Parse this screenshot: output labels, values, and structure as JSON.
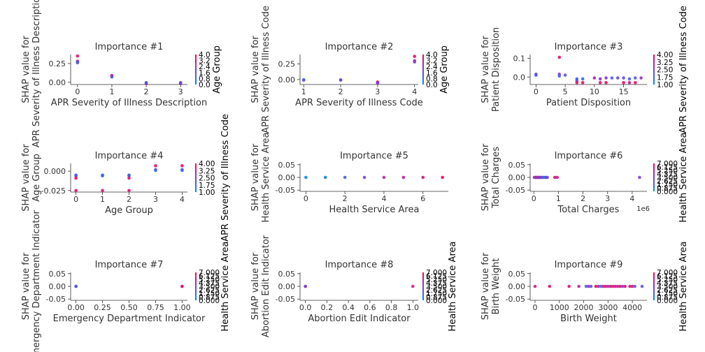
{
  "colors": {
    "low": "#008afb",
    "high": "#ff0051",
    "axis": "#333333"
  },
  "chart_data": [
    {
      "type": "scatter",
      "title": "Importance #1",
      "xlabel": "APR Severity of Illness Description",
      "ylabel": [
        "SHAP value for",
        "APR Severity of Illness Description"
      ],
      "xlim": [
        -0.2,
        3.2
      ],
      "ylim": [
        -0.03,
        0.37
      ],
      "xticks": [
        0,
        1,
        2,
        3
      ],
      "xtick_labels": [
        "0",
        "1",
        "2",
        "3"
      ],
      "yticks": [
        0,
        0.25
      ],
      "ytick_labels": [
        "0.00",
        "0.25"
      ],
      "colorbar": {
        "label": "Age Group",
        "ticks": [
          "0.0",
          "0.8",
          "1.6",
          "2.4",
          "3.2",
          "4.0"
        ]
      },
      "points": [
        {
          "x": 0,
          "y": 0.35,
          "c": 0.9
        },
        {
          "x": 0,
          "y": 0.28,
          "c": 0.7
        },
        {
          "x": 0,
          "y": 0.27,
          "c": 0.5
        },
        {
          "x": 0,
          "y": 0.26,
          "c": 0.3
        },
        {
          "x": 1,
          "y": 0.09,
          "c": 0.9
        },
        {
          "x": 1,
          "y": 0.08,
          "c": 0.6
        },
        {
          "x": 1,
          "y": 0.07,
          "c": 0.4
        },
        {
          "x": 2,
          "y": -0.01,
          "c": 0.5
        },
        {
          "x": 2,
          "y": -0.02,
          "c": 0.7
        },
        {
          "x": 2,
          "y": -0.005,
          "c": 0.3
        },
        {
          "x": 3,
          "y": -0.01,
          "c": 0.8
        },
        {
          "x": 3,
          "y": -0.02,
          "c": 0.6
        },
        {
          "x": 3,
          "y": -0.005,
          "c": 0.4
        }
      ]
    },
    {
      "type": "scatter",
      "title": "Importance #2",
      "xlabel": "APR Severity of Illness Code",
      "ylabel": [
        "SHAP value for",
        "APR Severity of Illness Code"
      ],
      "xlim": [
        0.9,
        4.1
      ],
      "ylim": [
        -0.08,
        0.4
      ],
      "xticks": [
        1,
        2,
        3,
        4
      ],
      "xtick_labels": [
        "1",
        "2",
        "3",
        "4"
      ],
      "yticks": [
        0,
        0.25
      ],
      "ytick_labels": [
        "0.00",
        "0.25"
      ],
      "colorbar": {
        "label": "Age Group",
        "ticks": [
          "0.0",
          "0.8",
          "1.6",
          "2.4",
          "3.2",
          "4.0"
        ]
      },
      "points": [
        {
          "x": 1,
          "y": -0.01,
          "c": 0.5
        },
        {
          "x": 1,
          "y": -0.005,
          "c": 0.3
        },
        {
          "x": 2,
          "y": -0.01,
          "c": 0.6
        },
        {
          "x": 2,
          "y": -0.005,
          "c": 0.4
        },
        {
          "x": 3,
          "y": -0.04,
          "c": 0.9
        },
        {
          "x": 3,
          "y": -0.05,
          "c": 0.7
        },
        {
          "x": 3,
          "y": -0.06,
          "c": 0.5
        },
        {
          "x": 4,
          "y": 0.37,
          "c": 0.9
        },
        {
          "x": 4,
          "y": 0.3,
          "c": 0.7
        },
        {
          "x": 4,
          "y": 0.28,
          "c": 0.5
        }
      ]
    },
    {
      "type": "scatter",
      "title": "Importance #3",
      "xlabel": "Patient Disposition",
      "ylabel": [
        "SHAP value for",
        "Patient Disposition"
      ],
      "xlim": [
        -1,
        19
      ],
      "ylim": [
        -0.04,
        0.12
      ],
      "xticks": [
        0,
        5,
        10,
        15
      ],
      "xtick_labels": [
        "0",
        "5",
        "10",
        "15"
      ],
      "yticks": [
        0,
        0.1
      ],
      "ytick_labels": [
        "0.0",
        "0.1"
      ],
      "colorbar": {
        "label": "APR Severity of Illness Code",
        "ticks": [
          "1.00",
          "1.75",
          "2.50",
          "3.25",
          "4.00"
        ]
      },
      "points": [
        {
          "x": 0,
          "y": 0.01,
          "c": 0.3
        },
        {
          "x": 0,
          "y": 0.015,
          "c": 0.4
        },
        {
          "x": 4,
          "y": 0.105,
          "c": 0.9
        },
        {
          "x": 4,
          "y": 0.015,
          "c": 0.5
        },
        {
          "x": 4,
          "y": 0.005,
          "c": 0.3
        },
        {
          "x": 5,
          "y": 0.01,
          "c": 0.4
        },
        {
          "x": 7,
          "y": -0.01,
          "c": 0.2
        },
        {
          "x": 7,
          "y": -0.02,
          "c": 0.5
        },
        {
          "x": 7,
          "y": -0.03,
          "c": 0.9
        },
        {
          "x": 8,
          "y": -0.01,
          "c": 0.2
        },
        {
          "x": 8,
          "y": -0.03,
          "c": 0.9
        },
        {
          "x": 10,
          "y": -0.005,
          "c": 0.7
        },
        {
          "x": 11,
          "y": -0.01,
          "c": 0.6
        },
        {
          "x": 11,
          "y": -0.03,
          "c": 0.9
        },
        {
          "x": 12,
          "y": -0.005,
          "c": 0.5
        },
        {
          "x": 12,
          "y": -0.03,
          "c": 0.9
        },
        {
          "x": 13,
          "y": -0.005,
          "c": 0.3
        },
        {
          "x": 14,
          "y": -0.005,
          "c": 0.4
        },
        {
          "x": 15,
          "y": -0.03,
          "c": 0.9
        },
        {
          "x": 15,
          "y": -0.005,
          "c": 0.4
        },
        {
          "x": 16,
          "y": -0.01,
          "c": 0.3
        },
        {
          "x": 16,
          "y": -0.03,
          "c": 0.8
        },
        {
          "x": 17,
          "y": -0.005,
          "c": 0.3
        },
        {
          "x": 17,
          "y": -0.03,
          "c": 0.9
        },
        {
          "x": 18,
          "y": -0.005,
          "c": 0.6
        }
      ]
    },
    {
      "type": "scatter",
      "title": "Importance #4",
      "xlabel": "Age Group",
      "ylabel": [
        "SHAP value for",
        "Age Group"
      ],
      "xlim": [
        -0.2,
        4.2
      ],
      "ylim": [
        -0.027,
        0.01
      ],
      "xticks": [
        0,
        1,
        2,
        3,
        4
      ],
      "xtick_labels": [
        "0",
        "1",
        "2",
        "3",
        "4"
      ],
      "yticks": [
        -0.025,
        0
      ],
      "ytick_labels": [
        "-0.025",
        "0.000"
      ],
      "colorbar": {
        "label": "APR Severity of Illness Code",
        "ticks": [
          "1.00",
          "1.75",
          "2.50",
          "3.25",
          "4.00"
        ]
      },
      "points": [
        {
          "x": 0,
          "y": -0.005,
          "c": 0.1
        },
        {
          "x": 0,
          "y": -0.006,
          "c": 0.4
        },
        {
          "x": 0,
          "y": -0.009,
          "c": 0.9
        },
        {
          "x": 0,
          "y": -0.025,
          "c": 0.9
        },
        {
          "x": 1,
          "y": -0.005,
          "c": 0.1
        },
        {
          "x": 1,
          "y": -0.006,
          "c": 0.3
        },
        {
          "x": 1,
          "y": -0.025,
          "c": 0.9
        },
        {
          "x": 2,
          "y": -0.005,
          "c": 0.1
        },
        {
          "x": 2,
          "y": -0.006,
          "c": 0.4
        },
        {
          "x": 2,
          "y": -0.009,
          "c": 0.9
        },
        {
          "x": 2,
          "y": -0.025,
          "c": 0.9
        },
        {
          "x": 3,
          "y": 0.007,
          "c": 0.9
        },
        {
          "x": 3,
          "y": 0.002,
          "c": 0.5
        },
        {
          "x": 3,
          "y": 0.001,
          "c": 0.2
        },
        {
          "x": 4,
          "y": 0.007,
          "c": 0.9
        },
        {
          "x": 4,
          "y": 0.002,
          "c": 0.5
        },
        {
          "x": 4,
          "y": 0.001,
          "c": 0.2
        }
      ]
    },
    {
      "type": "scatter",
      "title": "Importance #5",
      "xlabel": "Health Service Area",
      "ylabel": [
        "SHAP value for",
        "Health Service Area"
      ],
      "xlim": [
        -0.3,
        7.3
      ],
      "ylim": [
        -0.055,
        0.055
      ],
      "xticks": [
        0,
        2,
        4,
        6
      ],
      "xtick_labels": [
        "0",
        "2",
        "4",
        "6"
      ],
      "yticks": [
        -0.05,
        0,
        0.05
      ],
      "ytick_labels": [
        "-0.05",
        "0.00",
        "0.05"
      ],
      "colorbar": null,
      "points": [
        {
          "x": 0,
          "y": 0,
          "c": 0.0
        },
        {
          "x": 1,
          "y": 0,
          "c": 0.05
        },
        {
          "x": 2,
          "y": 0,
          "c": 0.3
        },
        {
          "x": 3,
          "y": 0,
          "c": 0.5
        },
        {
          "x": 4,
          "y": 0,
          "c": 0.7
        },
        {
          "x": 5,
          "y": 0,
          "c": 0.75
        },
        {
          "x": 6,
          "y": 0,
          "c": 0.9
        },
        {
          "x": 7,
          "y": 0,
          "c": 1.0
        }
      ]
    },
    {
      "type": "scatter",
      "title": "Importance #6",
      "xlabel": "Total Charges",
      "ylabel": [
        "SHAP value for",
        "Total Charges"
      ],
      "offset_text": "1e6",
      "xlim": [
        -0.15,
        4.6
      ],
      "ylim": [
        -0.055,
        0.055
      ],
      "xticks": [
        0,
        1,
        2,
        3,
        4
      ],
      "xtick_labels": [
        "0",
        "1",
        "2",
        "3",
        "4"
      ],
      "yticks": [
        -0.05,
        0,
        0.05
      ],
      "ytick_labels": [
        "-0.05",
        "0.00",
        "0.05"
      ],
      "colorbar": {
        "label": "Health Service Area",
        "ticks": [
          "0.000",
          "0.875",
          "1.750",
          "2.625",
          "3.500",
          "4.375",
          "5.250",
          "6.125",
          "7.000"
        ]
      },
      "points": [
        {
          "x": 0.02,
          "y": 0,
          "c": 0.5
        },
        {
          "x": 0.05,
          "y": 0,
          "c": 0.9
        },
        {
          "x": 0.08,
          "y": 0,
          "c": 0.2
        },
        {
          "x": 0.1,
          "y": 0,
          "c": 0.7
        },
        {
          "x": 0.13,
          "y": 0,
          "c": 0.4
        },
        {
          "x": 0.16,
          "y": 0,
          "c": 0.8
        },
        {
          "x": 0.19,
          "y": 0,
          "c": 0.3
        },
        {
          "x": 0.22,
          "y": 0,
          "c": 0.6
        },
        {
          "x": 0.25,
          "y": 0,
          "c": 0.9
        },
        {
          "x": 0.28,
          "y": 0,
          "c": 0.5
        },
        {
          "x": 0.31,
          "y": 0,
          "c": 0.2
        },
        {
          "x": 0.35,
          "y": 0,
          "c": 0.7
        },
        {
          "x": 0.4,
          "y": 0,
          "c": 0.3
        },
        {
          "x": 0.45,
          "y": 0,
          "c": 0.1
        },
        {
          "x": 0.5,
          "y": 0,
          "c": 0.6
        },
        {
          "x": 0.55,
          "y": 0,
          "c": 0.4
        },
        {
          "x": 0.85,
          "y": 0,
          "c": 0.9
        },
        {
          "x": 0.95,
          "y": 0,
          "c": 0.8
        },
        {
          "x": 4.3,
          "y": 0,
          "c": 0.5
        }
      ]
    },
    {
      "type": "scatter",
      "title": "Importance #7",
      "xlabel": "Emergency Department Indicator",
      "ylabel": [
        "SHAP value for",
        "Emergency Department Indicator"
      ],
      "xlim": [
        -0.05,
        1.05
      ],
      "ylim": [
        -0.055,
        0.055
      ],
      "xticks": [
        0,
        0.25,
        0.5,
        0.75,
        1
      ],
      "xtick_labels": [
        "0.00",
        "0.25",
        "0.50",
        "0.75",
        "1.00"
      ],
      "yticks": [
        -0.05,
        0,
        0.05
      ],
      "ytick_labels": [
        "-0.05",
        "0.00",
        "0.05"
      ],
      "colorbar": {
        "label": "Health Service Area",
        "ticks": [
          "0.000",
          "0.875",
          "1.750",
          "2.625",
          "3.500",
          "4.375",
          "5.250",
          "6.125",
          "7.000"
        ]
      },
      "points": [
        {
          "x": 0,
          "y": 0,
          "c": 0.1
        },
        {
          "x": 0,
          "y": 0,
          "c": 0.4
        },
        {
          "x": 1,
          "y": 0,
          "c": 0.6
        },
        {
          "x": 1,
          "y": 0,
          "c": 0.9
        }
      ]
    },
    {
      "type": "scatter",
      "title": "Importance #8",
      "xlabel": "Abortion Edit Indicator",
      "ylabel": [
        "SHAP value for",
        "Abortion Edit Indicator"
      ],
      "xlim": [
        -0.05,
        1.05
      ],
      "ylim": [
        -0.055,
        0.055
      ],
      "xticks": [
        0,
        0.2,
        0.4,
        0.6,
        0.8,
        1
      ],
      "xtick_labels": [
        "0.0",
        "0.2",
        "0.4",
        "0.6",
        "0.8",
        "1.0"
      ],
      "yticks": [
        -0.05,
        0,
        0.05
      ],
      "ytick_labels": [
        "-0.05",
        "0.00",
        "0.05"
      ],
      "colorbar": {
        "label": "Health Service Area",
        "ticks": [
          "0.000",
          "0.875",
          "1.750",
          "2.625",
          "3.500",
          "4.375",
          "5.250",
          "6.125",
          "7.000"
        ]
      },
      "points": [
        {
          "x": 0,
          "y": 0,
          "c": 0.9
        },
        {
          "x": 0,
          "y": 0,
          "c": 0.5
        },
        {
          "x": 1,
          "y": 0,
          "c": 0.8
        }
      ]
    },
    {
      "type": "scatter",
      "title": "Importance #9",
      "xlabel": "Birth Weight",
      "ylabel": [
        "SHAP value for",
        "Birth Weight"
      ],
      "xlim": [
        -200,
        4600
      ],
      "ylim": [
        -0.055,
        0.055
      ],
      "xticks": [
        0,
        1000,
        2000,
        3000,
        4000
      ],
      "xtick_labels": [
        "0",
        "1000",
        "2000",
        "3000",
        "4000"
      ],
      "yticks": [
        -0.05,
        0,
        0.05
      ],
      "ytick_labels": [
        "-0.05",
        "0.00",
        "0.05"
      ],
      "colorbar": {
        "label": "Health Service Area",
        "ticks": [
          "0.000",
          "0.875",
          "1.750",
          "2.625",
          "3.500",
          "4.375",
          "5.250",
          "6.125",
          "7.000"
        ]
      },
      "points": [
        {
          "x": 0,
          "y": 0,
          "c": 0.8
        },
        {
          "x": 600,
          "y": 0,
          "c": 0.9
        },
        {
          "x": 1400,
          "y": 0,
          "c": 0.9
        },
        {
          "x": 1800,
          "y": 0,
          "c": 0.7
        },
        {
          "x": 2100,
          "y": 0,
          "c": 0.3
        },
        {
          "x": 2200,
          "y": 0,
          "c": 0.6
        },
        {
          "x": 2300,
          "y": 0,
          "c": 0.4
        },
        {
          "x": 2500,
          "y": 0,
          "c": 0.9
        },
        {
          "x": 2600,
          "y": 0,
          "c": 0.7
        },
        {
          "x": 2700,
          "y": 0,
          "c": 0.2
        },
        {
          "x": 2800,
          "y": 0,
          "c": 0.8
        },
        {
          "x": 2900,
          "y": 0,
          "c": 0.9
        },
        {
          "x": 3000,
          "y": 0,
          "c": 0.6
        },
        {
          "x": 3100,
          "y": 0,
          "c": 0.9
        },
        {
          "x": 3200,
          "y": 0,
          "c": 0.8
        },
        {
          "x": 3300,
          "y": 0,
          "c": 0.9
        },
        {
          "x": 3400,
          "y": 0,
          "c": 0.7
        },
        {
          "x": 3500,
          "y": 0,
          "c": 0.9
        },
        {
          "x": 3600,
          "y": 0,
          "c": 0.5
        },
        {
          "x": 3700,
          "y": 0,
          "c": 0.9
        },
        {
          "x": 3900,
          "y": 0,
          "c": 0.8
        },
        {
          "x": 4000,
          "y": 0,
          "c": 0.9
        },
        {
          "x": 4100,
          "y": 0,
          "c": 0.3
        },
        {
          "x": 4400,
          "y": 0,
          "c": 0.4
        }
      ]
    }
  ]
}
